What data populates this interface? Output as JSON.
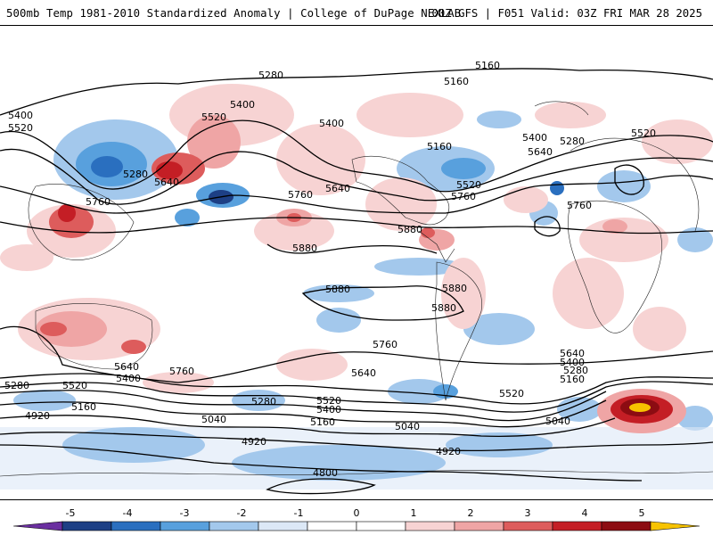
{
  "header": {
    "title": "500mb Temp 1981-2010 Standardized Anomaly | College of DuPage NEXLAB",
    "run_info": "00Z GFS | F051 Valid: 03Z FRI MAR 28 2025"
  },
  "contour_labels": [
    "5160",
    "5160",
    "5280",
    "5400",
    "5520",
    "5400",
    "5520",
    "5280",
    "5640",
    "5400",
    "5160",
    "5400",
    "5280",
    "5520",
    "5640",
    "5520",
    "5760",
    "5640",
    "5760",
    "5760",
    "5880",
    "5880",
    "5880",
    "5880",
    "5880",
    "5760",
    "5760",
    "5640",
    "5400",
    "5280",
    "5160",
    "5640",
    "5760",
    "5640",
    "5400",
    "5280",
    "5520",
    "5280",
    "5520",
    "5400",
    "5160",
    "4920",
    "5040",
    "5160",
    "5040",
    "4920",
    "4920",
    "4800",
    "5520",
    "5040"
  ],
  "colorbar": {
    "labels": [
      "-5",
      "-4",
      "-3",
      "-2",
      "-1",
      "0",
      "1",
      "2",
      "3",
      "4",
      "5"
    ],
    "colors": [
      "#6b2fa0",
      "#1d3f85",
      "#2a6fbf",
      "#58a0dd",
      "#a3c8ec",
      "#dce8f6",
      "#ffffff",
      "#ffffff",
      "#f7d3d3",
      "#efa5a5",
      "#dd5c5c",
      "#c41e25",
      "#8c0c12",
      "#f7c300"
    ]
  }
}
